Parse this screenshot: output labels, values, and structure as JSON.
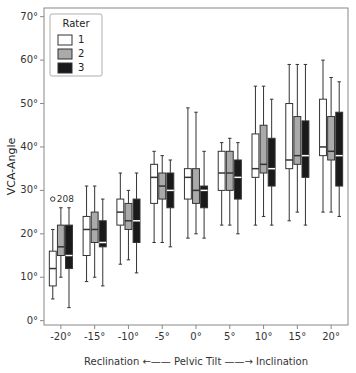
{
  "chart_data": {
    "type": "box",
    "xlabel": "Reclination  ←——  Pelvic Tilt  ——→  Inclination",
    "ylabel": "VCA-Angle",
    "categories": [
      "-20°",
      "-15°",
      "-10°",
      "-5°",
      "0°",
      "5°",
      "10°",
      "15°",
      "20°"
    ],
    "ylim": [
      -1,
      72
    ],
    "yticks": [
      {
        "value": 0,
        "label": "0°"
      },
      {
        "value": 10,
        "label": "10°"
      },
      {
        "value": 20,
        "label": "20°"
      },
      {
        "value": 30,
        "label": "30°"
      },
      {
        "value": 40,
        "label": "40°"
      },
      {
        "value": 50,
        "label": "50°"
      },
      {
        "value": 60,
        "label": "60°"
      },
      {
        "value": 70,
        "label": "70°"
      }
    ],
    "legend": "upper left",
    "legend_title": "Rater",
    "grid": false,
    "series": [
      {
        "name": "1",
        "color": "#ffffff",
        "values": [
          {
            "whislo": 5,
            "q1": 8,
            "med": 12,
            "q3": 16,
            "whishi": 21
          },
          {
            "whislo": 9,
            "q1": 15,
            "med": 21,
            "q3": 24,
            "whishi": 31
          },
          {
            "whislo": 13,
            "q1": 22,
            "med": 25,
            "q3": 28,
            "whishi": 34
          },
          {
            "whislo": 18,
            "q1": 27,
            "med": 33,
            "q3": 36,
            "whishi": 39
          },
          {
            "whislo": 19,
            "q1": 28,
            "med": 33,
            "q3": 35,
            "whishi": 49
          },
          {
            "whislo": 22,
            "q1": 30,
            "med": 34,
            "q3": 39,
            "whishi": 41
          },
          {
            "whislo": 22,
            "q1": 33,
            "med": 35,
            "q3": 43,
            "whishi": 54
          },
          {
            "whislo": 23,
            "q1": 35,
            "med": 37,
            "q3": 50,
            "whishi": 59
          },
          {
            "whislo": 25,
            "q1": 38,
            "med": 40,
            "q3": 51,
            "whishi": 60
          }
        ],
        "outliers": [
          {
            "category": "-20°",
            "value": 28,
            "label": "208"
          }
        ]
      },
      {
        "name": "2",
        "color": "#aaaaaa",
        "values": [
          {
            "whislo": 10,
            "q1": 15,
            "med": 17,
            "q3": 22,
            "whishi": 26
          },
          {
            "whislo": 10,
            "q1": 18,
            "med": 21,
            "q3": 25,
            "whishi": 31
          },
          {
            "whislo": 14,
            "q1": 21,
            "med": 23,
            "q3": 27,
            "whishi": 30
          },
          {
            "whislo": 18,
            "q1": 28,
            "med": 31,
            "q3": 34,
            "whishi": 38
          },
          {
            "whislo": 20,
            "q1": 27,
            "med": 30,
            "q3": 35,
            "whishi": 48
          },
          {
            "whislo": 22,
            "q1": 30,
            "med": 34,
            "q3": 39,
            "whishi": 42
          },
          {
            "whislo": 24,
            "q1": 34,
            "med": 36,
            "q3": 45,
            "whishi": 54
          },
          {
            "whislo": 25,
            "q1": 36,
            "med": 38,
            "q3": 47,
            "whishi": 59
          },
          {
            "whislo": 25,
            "q1": 37,
            "med": 39,
            "q3": 47,
            "whishi": 56
          }
        ]
      },
      {
        "name": "3",
        "color": "#1a1a1a",
        "values": [
          {
            "whislo": 3,
            "q1": 12,
            "med": 15,
            "q3": 22,
            "whishi": 26
          },
          {
            "whislo": 8,
            "q1": 17,
            "med": 18,
            "q3": 23,
            "whishi": 28
          },
          {
            "whislo": 11,
            "q1": 18,
            "med": 23,
            "q3": 28,
            "whishi": 34
          },
          {
            "whislo": 17,
            "q1": 26,
            "med": 30,
            "q3": 34,
            "whishi": 37
          },
          {
            "whislo": 19,
            "q1": 26,
            "med": 30,
            "q3": 31,
            "whishi": 39
          },
          {
            "whislo": 20,
            "q1": 28,
            "med": 33,
            "q3": 37,
            "whishi": 41
          },
          {
            "whislo": 22,
            "q1": 31,
            "med": 35,
            "q3": 42,
            "whishi": 51
          },
          {
            "whislo": 22,
            "q1": 33,
            "med": 38,
            "q3": 46,
            "whishi": 59
          },
          {
            "whislo": 24,
            "q1": 31,
            "med": 38,
            "q3": 48,
            "whishi": 55
          }
        ]
      }
    ]
  }
}
